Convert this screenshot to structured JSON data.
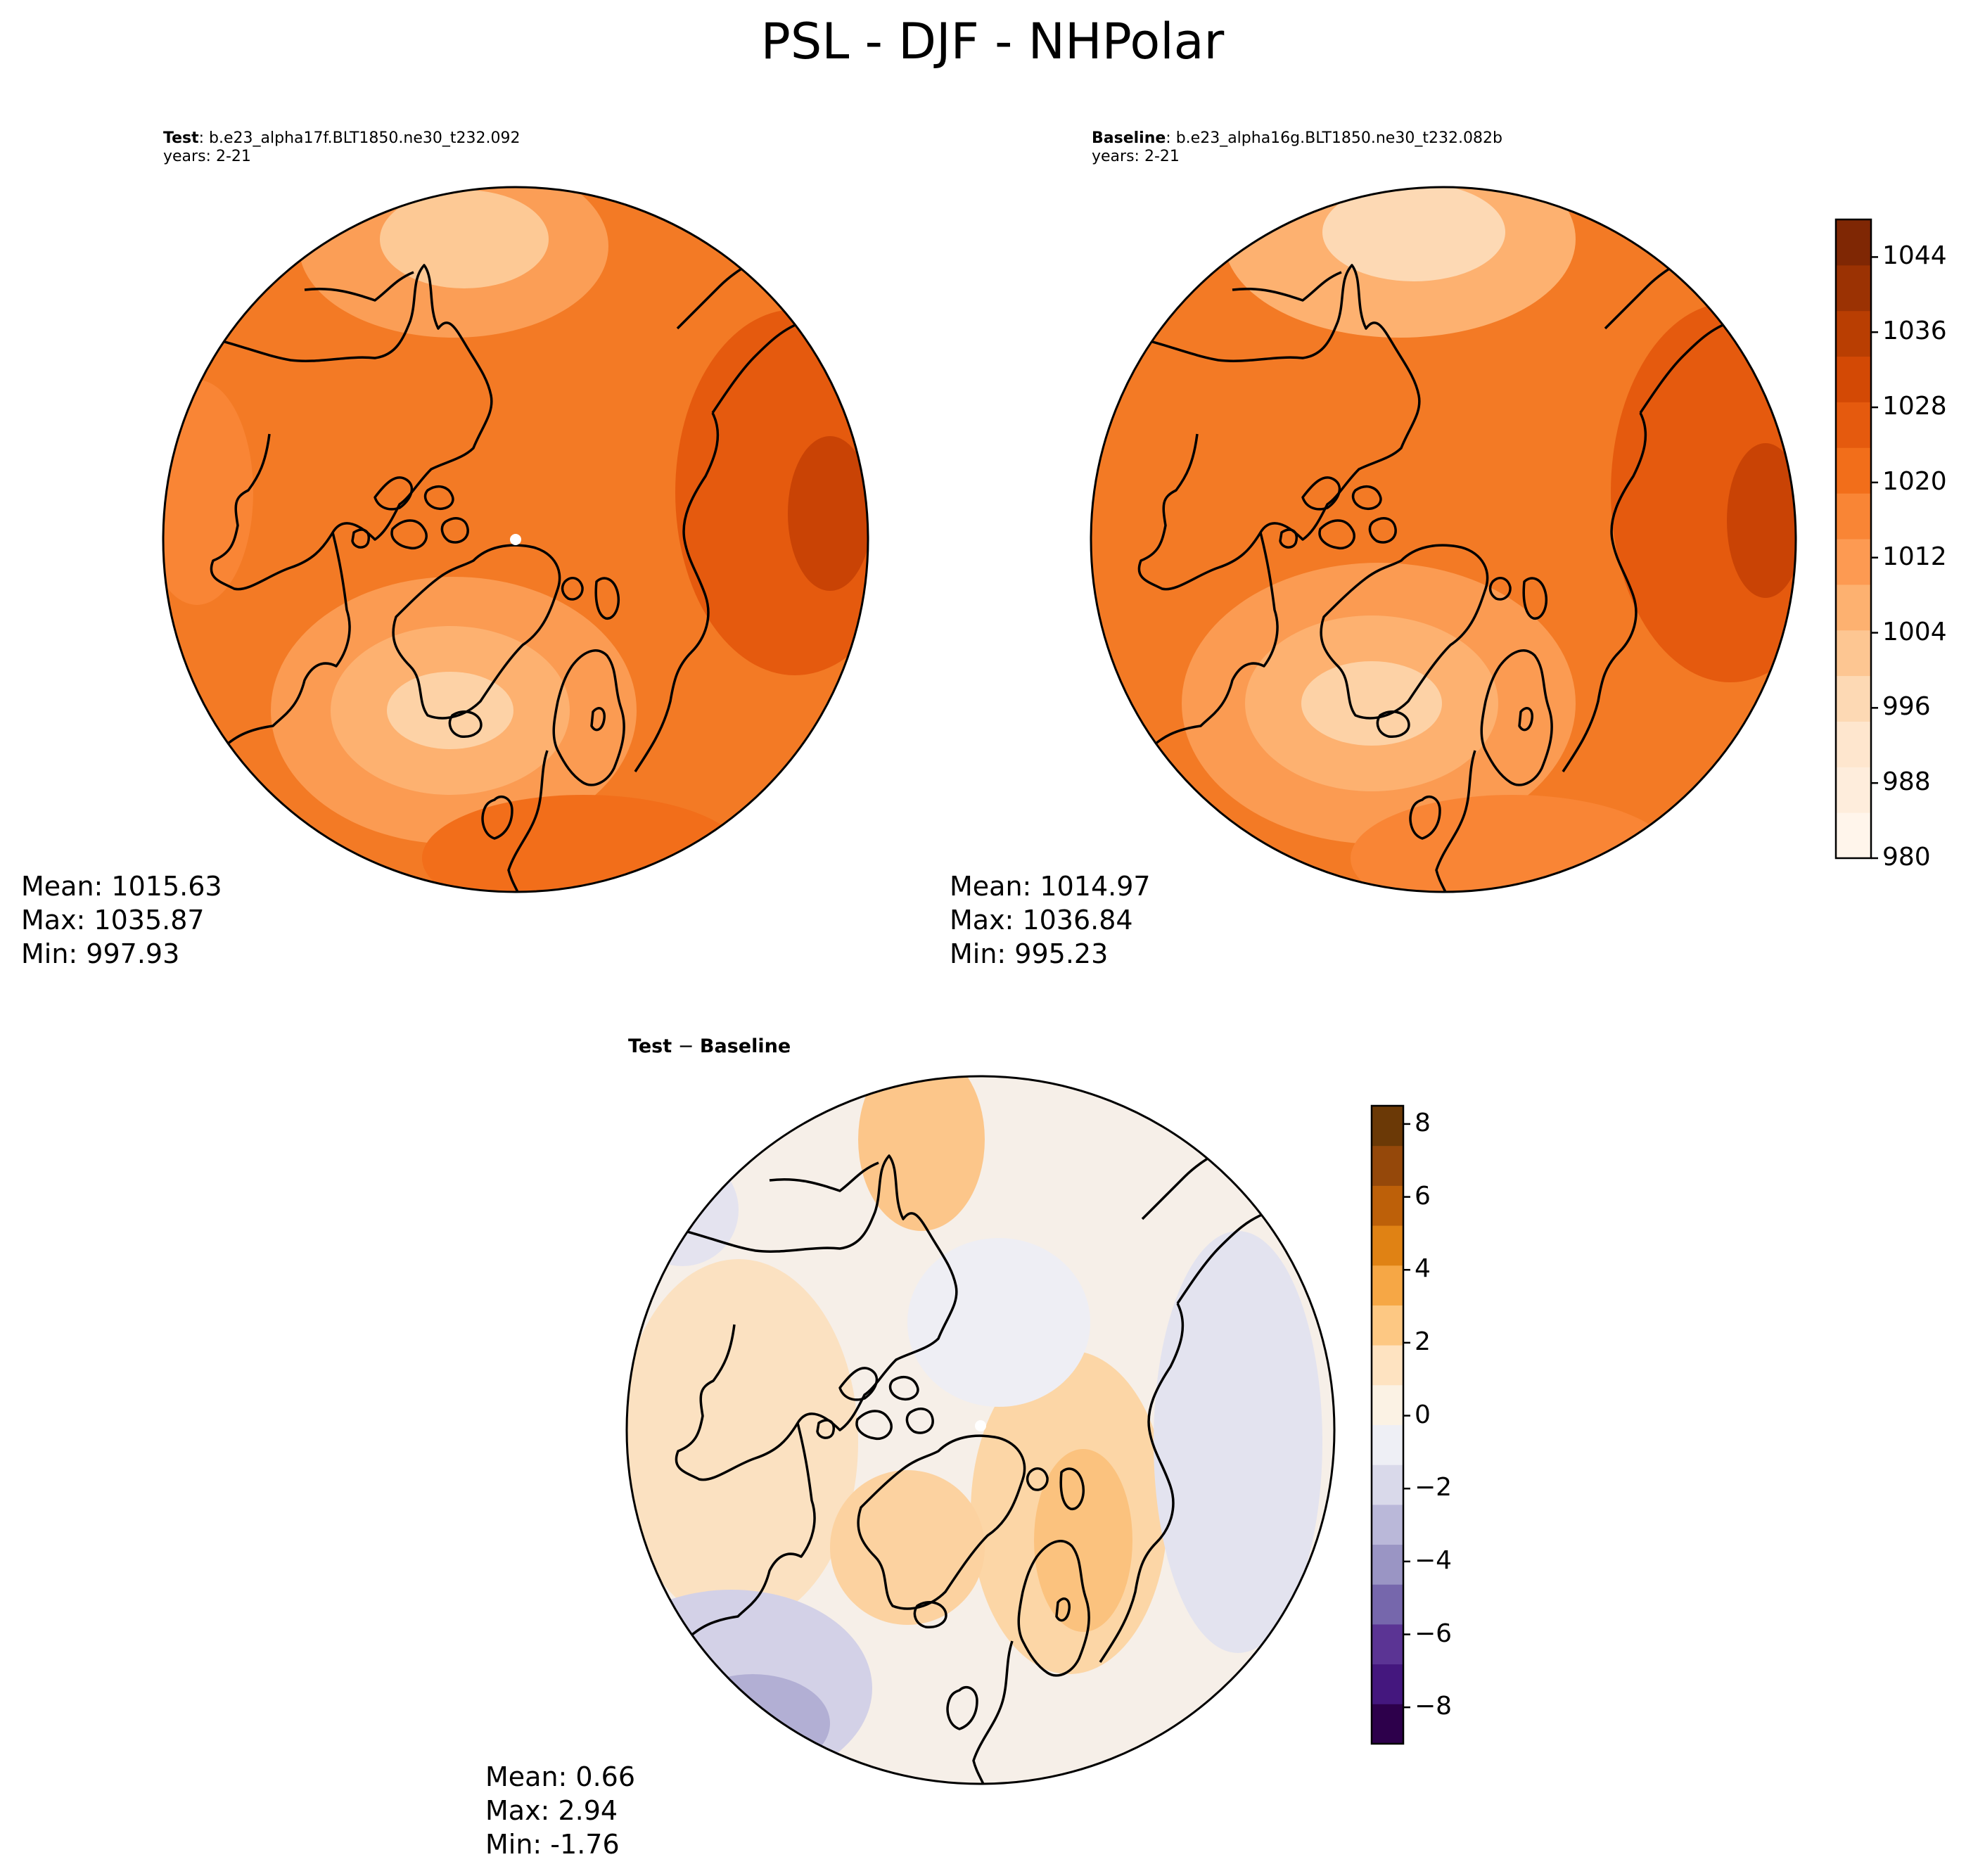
{
  "title": "PSL - DJF - NHPolar",
  "colors": {
    "seq": [
      "#fff5eb",
      "#feeddc",
      "#fee6ce",
      "#fdd9b4",
      "#fdc692",
      "#fdb170",
      "#fd9a52",
      "#f98535",
      "#f26e1a",
      "#e55a0e",
      "#d34905",
      "#b93e02",
      "#9b3203",
      "#7f2704"
    ],
    "div": [
      "#2d004b",
      "#44177e",
      "#5b3494",
      "#7667ac",
      "#9a95c4",
      "#bab8d9",
      "#d9d9ea",
      "#eeeff5",
      "#fbf2e4",
      "#fee3c1",
      "#fdc883",
      "#f6a745",
      "#e08214",
      "#bd6009",
      "#95480a",
      "#6b3906"
    ]
  },
  "panels": {
    "test": {
      "label": "Test",
      "case": ": b.e23_alpha17f.BLT1850.ne30_t232.092",
      "years": "years: 2-21",
      "mean": "Mean: 1015.63",
      "max": "Max: 1035.87",
      "min": "Min: 997.93"
    },
    "baseline": {
      "label": "Baseline",
      "case": ": b.e23_alpha16g.BLT1850.ne30_t232.082b",
      "years": "years: 2-21",
      "mean": "Mean: 1014.97",
      "max": "Max: 1036.84",
      "min": "Min: 995.23"
    },
    "diff": {
      "title_a": "Test",
      "title_sep": " − ",
      "title_b": "Baseline",
      "mean": "Mean:  0.66",
      "max": "Max:  2.94",
      "min": "Min: -1.76"
    }
  },
  "colorbars": {
    "psl": {
      "range": [
        980,
        1048
      ],
      "ticks": [
        "980",
        "988",
        "996",
        "1004",
        "1012",
        "1020",
        "1028",
        "1036",
        "1044"
      ],
      "tick_values": [
        980,
        988,
        996,
        1004,
        1012,
        1020,
        1028,
        1036,
        1044
      ]
    },
    "diff": {
      "range": [
        -9,
        8.5
      ],
      "ticks": [
        "−8",
        "−6",
        "−4",
        "−2",
        "0",
        "2",
        "4",
        "6",
        "8"
      ],
      "tick_values": [
        -8,
        -6,
        -4,
        -2,
        0,
        2,
        4,
        6,
        8
      ]
    }
  }
}
